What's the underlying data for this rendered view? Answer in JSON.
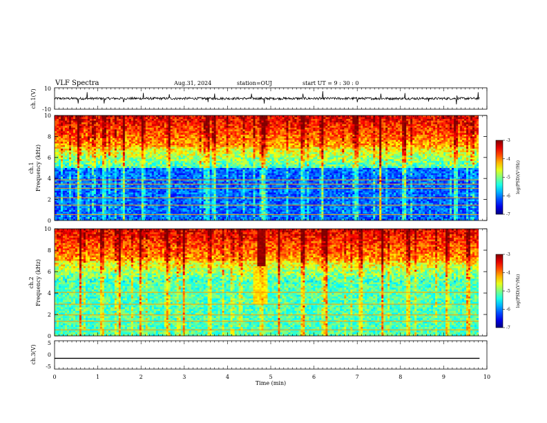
{
  "header": {
    "title": "VLF Spectra",
    "date": "Aug.31, 2024",
    "station": "station=OUJ",
    "start": "start  UT =  9 : 30 : 0"
  },
  "chart_data": [
    {
      "type": "line",
      "name": "ch1-waveform",
      "ylabel": "ch.1(V)",
      "ylim": [
        -10,
        10
      ],
      "yticks": [
        "10",
        "-10"
      ],
      "trace": {
        "baseline": 0,
        "spikes": [
          0.55,
          0.75,
          1.15,
          1.6,
          2.05,
          2.65,
          3.55,
          3.7,
          4.55,
          4.85,
          5.75,
          6.2,
          7.0,
          7.55,
          8.1,
          8.65,
          9.3,
          9.8
        ]
      }
    },
    {
      "type": "heatmap",
      "name": "ch1-spectrogram",
      "ylabel_top": "ch.1",
      "ylabel": "Frequency  (kHz)",
      "ylim": [
        0,
        10
      ],
      "yticks": [
        "0",
        "2",
        "4",
        "6",
        "8",
        "10"
      ],
      "colorbar": {
        "label": "log(PSD)(V²/Hz)",
        "ticks": [
          "-3",
          "-4",
          "-5",
          "-6",
          "-7"
        ],
        "range": [
          -7,
          -3
        ]
      },
      "features": {
        "background_low": -6.5,
        "strong_lines_kHz": [
          0.6,
          1.5,
          2.2,
          3.1,
          3.5,
          3.9
        ],
        "bursts_min": [
          0.55,
          1.15,
          1.6,
          2.05,
          2.65,
          3.55,
          3.7,
          4.85,
          5.75,
          6.2,
          7.0,
          7.55,
          8.1,
          9.3
        ]
      }
    },
    {
      "type": "heatmap",
      "name": "ch2-spectrogram",
      "ylabel_top": "ch.2",
      "ylabel": "Frequency  (kHz)",
      "ylim": [
        0,
        10
      ],
      "yticks": [
        "0",
        "2",
        "4",
        "6",
        "8",
        "10"
      ],
      "colorbar": {
        "label": "log(PSD)(V²/Hz)",
        "ticks": [
          "-3",
          "-4",
          "-5",
          "-6",
          "-7"
        ],
        "range": [
          -7,
          -3
        ]
      },
      "features": {
        "background_low": -5.6,
        "strong_lines_kHz": [
          0.6,
          1.4,
          2.0,
          3.0,
          4.1
        ],
        "red_patch_min": [
          4.7,
          4.9
        ],
        "bursts_min": [
          0.6,
          1.1,
          1.5,
          2.0,
          2.6,
          3.0,
          3.6,
          4.8,
          5.2,
          5.75,
          6.3,
          7.1,
          7.6,
          8.2,
          9.1,
          9.6
        ]
      }
    },
    {
      "type": "line",
      "name": "ch3-waveform",
      "ylabel": "ch.3(V)",
      "ylim": [
        -5,
        5
      ],
      "yticks": [
        "5",
        "0",
        "-5"
      ],
      "trace": {
        "baseline": -1.2
      }
    }
  ],
  "xaxis": {
    "label": "Time  (min)",
    "ticks": [
      "0",
      "1",
      "2",
      "3",
      "4",
      "5",
      "6",
      "7",
      "8",
      "9",
      "10"
    ],
    "range": [
      0,
      10
    ],
    "data_end": 9.83
  }
}
